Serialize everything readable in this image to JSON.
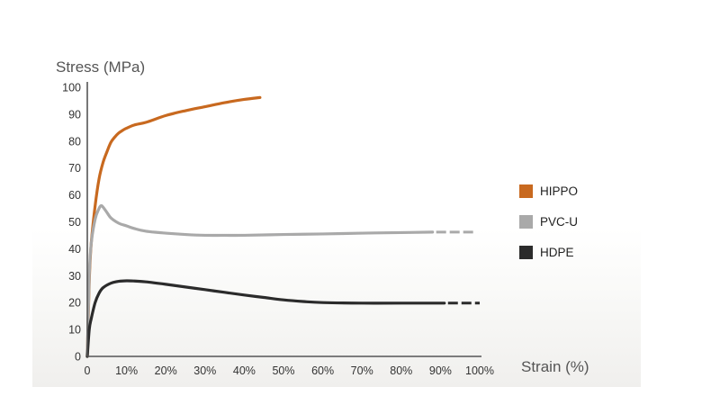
{
  "chart_data": {
    "type": "line",
    "ylabel": "Stress (MPa)",
    "xlabel": "Strain (%)",
    "xlim": [
      0,
      100
    ],
    "ylim": [
      0,
      100
    ],
    "x_ticks": [
      "0",
      "10%",
      "20%",
      "30%",
      "40%",
      "50%",
      "60%",
      "70%",
      "80%",
      "90%",
      "100%"
    ],
    "y_ticks": [
      "0",
      "10",
      "20",
      "30",
      "40",
      "50",
      "60",
      "70",
      "80",
      "90",
      "100"
    ],
    "grid": false,
    "legend_position": "right",
    "series": [
      {
        "name": "HIPPO",
        "color": "#c8691f",
        "x": [
          0,
          0.5,
          1,
          2,
          3,
          4,
          5,
          6,
          7,
          8,
          9,
          10,
          12,
          15,
          20,
          25,
          30,
          35,
          40,
          44
        ],
        "y": [
          0,
          28,
          42,
          56,
          66,
          72,
          76,
          79.5,
          81.5,
          83,
          84,
          84.8,
          86,
          87,
          89.5,
          91.3,
          92.8,
          94.3,
          95.5,
          96.2
        ],
        "dashed_extension_to": null
      },
      {
        "name": "PVC-U",
        "color": "#a9a9a9",
        "x": [
          0,
          0.5,
          1,
          2,
          3,
          3.5,
          4,
          5,
          6,
          8,
          10,
          12,
          15,
          20,
          25,
          30,
          35,
          40,
          50,
          60,
          70,
          80,
          88
        ],
        "y": [
          0,
          30,
          42,
          51,
          55,
          56,
          55.5,
          53.5,
          51.5,
          49.5,
          48.5,
          47.5,
          46.5,
          45.8,
          45.3,
          45,
          45,
          45,
          45.3,
          45.5,
          45.8,
          46,
          46.2
        ],
        "dashed_extension_to": 99
      },
      {
        "name": "HDPE",
        "color": "#2b2b2b",
        "x": [
          0,
          0.5,
          1,
          2,
          3,
          4,
          6,
          8,
          10,
          12,
          15,
          20,
          25,
          30,
          35,
          40,
          45,
          50,
          55,
          60,
          70,
          80,
          91
        ],
        "y": [
          0,
          10,
          14,
          20,
          23.5,
          25.5,
          27.2,
          27.9,
          28.1,
          28,
          27.7,
          26.8,
          25.8,
          24.8,
          23.8,
          22.8,
          21.9,
          21,
          20.4,
          20,
          19.8,
          19.8,
          19.8
        ],
        "dashed_extension_to": 100
      }
    ]
  },
  "colors": {
    "axis": "#555555",
    "hippo": "#c8691f",
    "pvc": "#a9a9a9",
    "hdpe": "#2b2b2b"
  }
}
